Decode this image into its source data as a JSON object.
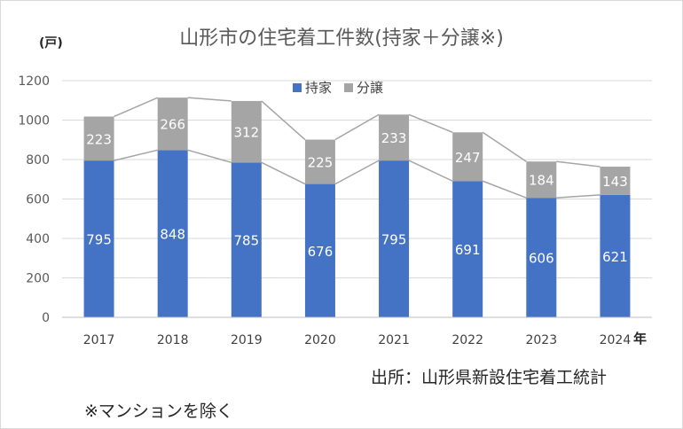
{
  "chart_data": {
    "type": "bar",
    "title": "山形市の住宅着工件数(持家＋分譲※)",
    "unit_label": "(戸)",
    "categories": [
      "2017",
      "2018",
      "2019",
      "2020",
      "2021",
      "2022",
      "2023",
      "2024"
    ],
    "year_suffix": "年",
    "series": [
      {
        "name": "持家",
        "values": [
          795,
          848,
          785,
          676,
          795,
          691,
          606,
          621
        ],
        "color": "#4472c4"
      },
      {
        "name": "分譲",
        "values": [
          223,
          266,
          312,
          225,
          233,
          247,
          184,
          143
        ],
        "color": "#a5a5a5"
      }
    ],
    "ylim": [
      0,
      1200
    ],
    "yticks": [
      0,
      200,
      400,
      600,
      800,
      1000,
      1200
    ],
    "stacked": true,
    "grid": true,
    "legend": "top-center",
    "source": "出所：山形県新設住宅着工統計",
    "note": "※マンションを除く"
  }
}
